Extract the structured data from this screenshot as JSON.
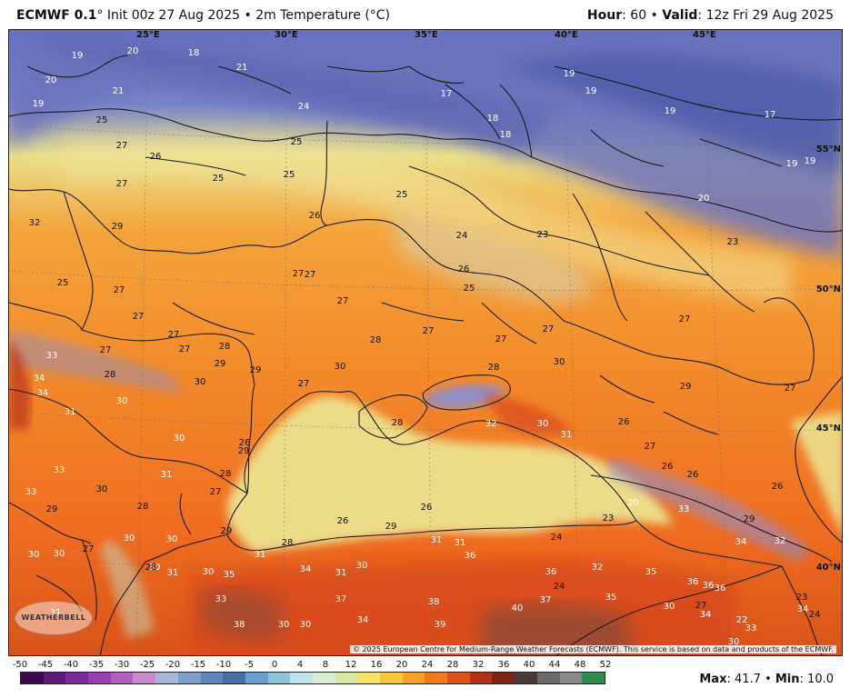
{
  "header": {
    "model": "ECMWF 0.1",
    "model_deg": "°",
    "init_text": "Init 00z 27 Aug 2025 • 2m Temperature (°C)",
    "hour_label": "Hour",
    "hour_value": ": 60 • ",
    "valid_label": "Valid",
    "valid_value": ": 12z Fri 29 Aug 2025"
  },
  "map": {
    "lon_labels": [
      "25°E",
      "30°E",
      "35°E",
      "40°E",
      "45°E"
    ],
    "lat_labels": [
      "55°N",
      "50°N",
      "45°N",
      "40°N"
    ],
    "temps": [
      [
        "19",
        1
      ],
      [
        "20",
        1
      ],
      [
        "18",
        1
      ],
      [
        "20",
        1
      ],
      [
        "21",
        1
      ],
      [
        "19",
        1
      ],
      [
        "21",
        1
      ],
      [
        "17",
        1
      ],
      [
        "19",
        1
      ],
      [
        "19",
        1
      ],
      [
        "24",
        1
      ],
      [
        "19",
        1
      ],
      [
        "17",
        1
      ],
      [
        "18",
        1
      ],
      [
        "18",
        1
      ],
      [
        "25",
        0
      ],
      [
        "27",
        0
      ],
      [
        "26",
        0
      ],
      [
        "25",
        0
      ],
      [
        "25",
        0
      ],
      [
        "27",
        0
      ],
      [
        "25",
        0
      ],
      [
        "19",
        1
      ],
      [
        "19",
        1
      ],
      [
        "20",
        1
      ],
      [
        "32",
        0
      ],
      [
        "29",
        0
      ],
      [
        "25",
        0
      ],
      [
        "26",
        0
      ],
      [
        "24",
        0
      ],
      [
        "23",
        0
      ],
      [
        "23",
        0
      ],
      [
        "26",
        0
      ],
      [
        "25",
        0
      ],
      [
        "27",
        0
      ],
      [
        "27",
        0
      ],
      [
        "27",
        0
      ],
      [
        "25",
        0
      ],
      [
        "27",
        0
      ],
      [
        "27",
        0
      ],
      [
        "27",
        0
      ],
      [
        "27",
        0
      ],
      [
        "28",
        0
      ],
      [
        "27",
        0
      ],
      [
        "27",
        0
      ],
      [
        "27",
        0
      ],
      [
        "27",
        0
      ],
      [
        "33",
        1
      ],
      [
        "27",
        0
      ],
      [
        "28",
        0
      ],
      [
        "28",
        0
      ],
      [
        "29",
        0
      ],
      [
        "30",
        0
      ],
      [
        "28",
        0
      ],
      [
        "30",
        0
      ],
      [
        "29",
        0
      ],
      [
        "30",
        0
      ],
      [
        "34",
        1
      ],
      [
        "34",
        1
      ],
      [
        "30",
        1
      ],
      [
        "27",
        0
      ],
      [
        "29",
        0
      ],
      [
        "27",
        0
      ],
      [
        "28",
        0
      ],
      [
        "32",
        1
      ],
      [
        "30",
        1
      ],
      [
        "26",
        0
      ],
      [
        "31",
        1
      ],
      [
        "30",
        1
      ],
      [
        "31",
        1
      ],
      [
        "29",
        0
      ],
      [
        "27",
        0
      ],
      [
        "26",
        0
      ],
      [
        "26",
        0
      ],
      [
        "26",
        0
      ],
      [
        "33",
        1
      ],
      [
        "31",
        1
      ],
      [
        "28",
        0
      ],
      [
        "33",
        1
      ],
      [
        "30",
        0
      ],
      [
        "27",
        0
      ],
      [
        "28",
        0
      ],
      [
        "26",
        0
      ],
      [
        "30",
        1
      ],
      [
        "33",
        1
      ],
      [
        "29",
        0
      ],
      [
        "26",
        0
      ],
      [
        "29",
        0
      ],
      [
        "26",
        0
      ],
      [
        "23",
        0
      ],
      [
        "30",
        1
      ],
      [
        "29",
        0
      ],
      [
        "32",
        1
      ],
      [
        "24",
        0
      ],
      [
        "34",
        1
      ],
      [
        "27",
        0
      ],
      [
        "28",
        0
      ],
      [
        "29",
        0
      ],
      [
        "30",
        1
      ],
      [
        "30",
        1
      ],
      [
        "31",
        1
      ],
      [
        "30",
        1
      ],
      [
        "34",
        1
      ],
      [
        "30",
        1
      ],
      [
        "31",
        1
      ],
      [
        "31",
        1
      ],
      [
        "31",
        1
      ],
      [
        "30",
        1
      ],
      [
        "36",
        1
      ],
      [
        "35",
        1
      ],
      [
        "36",
        1
      ],
      [
        "32",
        1
      ],
      [
        "24",
        0
      ],
      [
        "30",
        1
      ],
      [
        "35",
        1
      ],
      [
        "33",
        1
      ],
      [
        "30",
        1
      ],
      [
        "37",
        1
      ],
      [
        "31",
        1
      ],
      [
        "36",
        1
      ],
      [
        "30",
        1
      ],
      [
        "35",
        1
      ],
      [
        "23",
        0
      ],
      [
        "28",
        0
      ],
      [
        "34",
        1
      ],
      [
        "36",
        1
      ],
      [
        "33",
        1
      ],
      [
        "31",
        1
      ],
      [
        "38",
        1
      ],
      [
        "30",
        1
      ],
      [
        "34",
        1
      ],
      [
        "37",
        1
      ],
      [
        "38",
        1
      ],
      [
        "40",
        1
      ],
      [
        "39",
        1
      ],
      [
        "36",
        1
      ],
      [
        "34",
        1
      ],
      [
        "24",
        0
      ],
      [
        "27",
        0
      ],
      [
        "22",
        1
      ],
      [
        "30",
        1
      ]
    ],
    "copyright": "© 2025 European Centre for Medium-Range Weather Forecasts (ECMWF). This service is based on data and products of the ECMWF.",
    "logo_text": "WEATHERBELL"
  },
  "colorbar": {
    "ticks": [
      "-50",
      "-45",
      "-40",
      "-35",
      "-30",
      "-25",
      "-20",
      "-15",
      "-10",
      "-5",
      "0",
      "4",
      "8",
      "12",
      "16",
      "20",
      "24",
      "28",
      "32",
      "36",
      "40",
      "44",
      "48",
      "52"
    ],
    "colors": [
      "#3a0a4a",
      "#5a1a78",
      "#7a2a95",
      "#9c3fae",
      "#b55fbc",
      "#c98bcc",
      "#a6b6d4",
      "#7e9fc8",
      "#5f86b8",
      "#4a6ea8",
      "#6a9fd1",
      "#8fc3d8",
      "#bfe3e6",
      "#d9ecd4",
      "#d8e7a1",
      "#f3e36a",
      "#f8c63a",
      "#f5a02a",
      "#ee7a1c",
      "#d9531b",
      "#b13219",
      "#7e2416",
      "#4a3a3a",
      "#6a6a6a",
      "#8a8a8a",
      "#2e8a4e"
    ],
    "max_label": "Max",
    "max_value": ": 41.7 • ",
    "min_label": "Min",
    "min_value": ": 10.0"
  }
}
